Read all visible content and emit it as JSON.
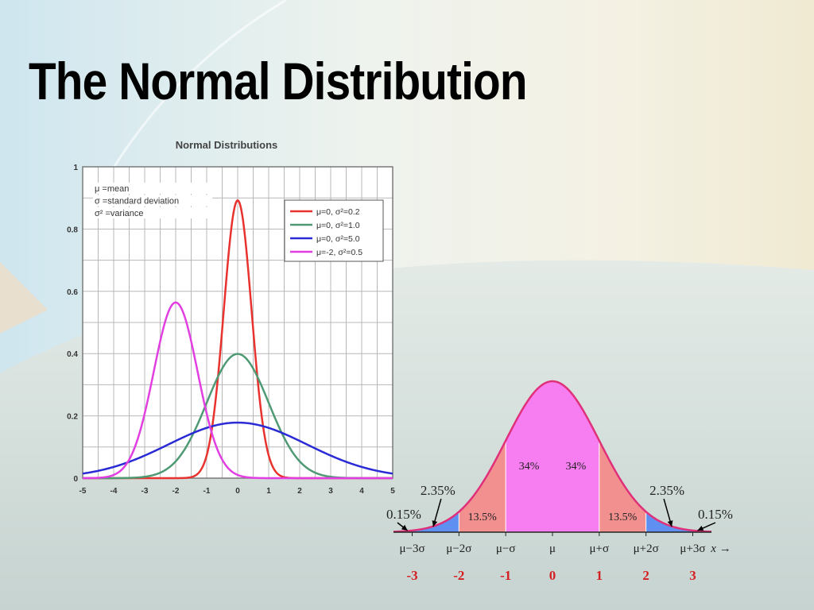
{
  "slide": {
    "title": "The Normal Distribution"
  },
  "chart_data": [
    {
      "type": "line",
      "title": "Normal Distributions",
      "xlim": [
        -5,
        5
      ],
      "ylim": [
        0,
        1
      ],
      "x_ticks": [
        "-5",
        "-4",
        "-3",
        "-2",
        "-1",
        "0",
        "1",
        "2",
        "3",
        "4",
        "5"
      ],
      "y_ticks": [
        "0",
        "0.2",
        "0.4",
        "0.6",
        "0.8",
        "1"
      ],
      "grid": true,
      "notes": [
        "μ  =mean",
        "σ  =standard deviation",
        "σ² =variance"
      ],
      "legend_position": "top-right",
      "series": [
        {
          "name": "μ=0, σ²=0.2",
          "mean": 0,
          "variance": 0.2,
          "color": "#e8322e"
        },
        {
          "name": "μ=0, σ²=1.0",
          "mean": 0,
          "variance": 1.0,
          "color": "#4f9a74"
        },
        {
          "name": "μ=0, σ²=5.0",
          "mean": 0,
          "variance": 5.0,
          "color": "#2b2bd6"
        },
        {
          "name": "μ=-2, σ²=0.5",
          "mean": -2,
          "variance": 0.5,
          "color": "#e23fe2"
        }
      ]
    },
    {
      "type": "area",
      "xlim": [
        -3.4,
        3.4
      ],
      "sigma_labels": [
        "μ−3σ",
        "μ−2σ",
        "μ−σ",
        "μ",
        "μ+σ",
        "μ+2σ",
        "μ+3σ"
      ],
      "z_values": [
        "-3",
        "-2",
        "-1",
        "0",
        "1",
        "2",
        "3"
      ],
      "axis_label": "x →",
      "regions": [
        {
          "from": -3.4,
          "to": -3,
          "percent": "0.15%",
          "color": "#f07ea0"
        },
        {
          "from": -3,
          "to": -2,
          "percent": "2.35%",
          "color": "#5f8ff0"
        },
        {
          "from": -2,
          "to": -1,
          "percent": "13.5%",
          "color": "#f29090"
        },
        {
          "from": -1,
          "to": 0,
          "percent": "34%",
          "color": "#f77ef1"
        },
        {
          "from": 0,
          "to": 1,
          "percent": "34%",
          "color": "#f77ef1"
        },
        {
          "from": 1,
          "to": 2,
          "percent": "13.5%",
          "color": "#f29090"
        },
        {
          "from": 2,
          "to": 3,
          "percent": "2.35%",
          "color": "#5f8ff0"
        },
        {
          "from": 3,
          "to": 3.4,
          "percent": "0.15%",
          "color": "#f07ea0"
        }
      ],
      "curve_color": "#e0307a",
      "z_color": "#d42020"
    }
  ]
}
